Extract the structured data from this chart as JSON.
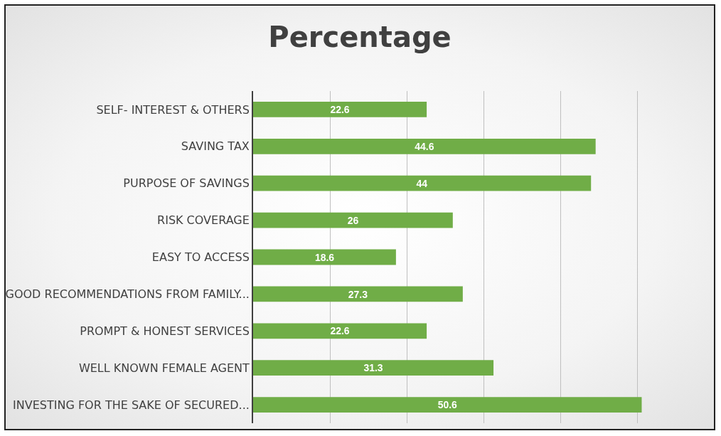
{
  "chart_data": {
    "type": "bar",
    "title": "Percentage",
    "orientation": "horizontal",
    "categories": [
      "SELF- INTEREST & OTHERS",
      "SAVING TAX",
      "PURPOSE OF SAVINGS",
      "RISK COVERAGE",
      "EASY TO ACCESS",
      "GOOD RECOMMENDATIONS FROM FAMILY...",
      "PROMPT & HONEST SERVICES",
      "WELL KNOWN FEMALE AGENT",
      "INVESTING FOR THE SAKE OF SECURED..."
    ],
    "values": [
      22.6,
      44.6,
      44,
      26,
      18.6,
      27.3,
      22.6,
      31.3,
      50.6
    ],
    "color": "#70ad47",
    "data_labels": true,
    "grid": "x",
    "tick_labels": "y",
    "xlim": [
      0,
      60
    ],
    "xticks": [
      {
        "value": 0,
        "label": null
      },
      {
        "value": 10,
        "label": null
      },
      {
        "value": 20,
        "label": null
      },
      {
        "value": 30,
        "label": null
      },
      {
        "value": 40,
        "label": null
      },
      {
        "value": 50,
        "label": null
      },
      {
        "value": 60,
        "label": null
      }
    ]
  }
}
